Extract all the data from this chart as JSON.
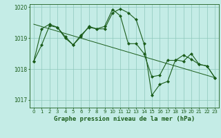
{
  "title": "Graphe pression niveau de la mer (hPa)",
  "bg_color": "#c4ece6",
  "grid_color": "#8ec8bc",
  "line_color": "#1a5c1a",
  "marker_color": "#1a5c1a",
  "xlim": [
    -0.5,
    23.5
  ],
  "ylim": [
    1016.75,
    1020.1
  ],
  "yticks": [
    1017,
    1018,
    1019,
    1020
  ],
  "xticks": [
    0,
    1,
    2,
    3,
    4,
    5,
    6,
    7,
    8,
    9,
    10,
    11,
    12,
    13,
    14,
    15,
    16,
    17,
    18,
    19,
    20,
    21,
    22,
    23
  ],
  "series1": [
    1018.25,
    1018.78,
    1019.4,
    1019.35,
    1019.05,
    1018.78,
    1019.1,
    1019.35,
    1019.3,
    1019.3,
    1019.82,
    1019.95,
    1019.82,
    1019.6,
    1018.82,
    1017.15,
    1017.5,
    1017.6,
    1018.3,
    1018.25,
    1018.5,
    1018.15,
    1018.1,
    1017.72
  ],
  "series2": [
    1018.25,
    1019.3,
    1019.45,
    1019.35,
    1019.0,
    1018.78,
    1019.05,
    1019.38,
    1019.3,
    1019.38,
    1019.93,
    1019.72,
    1018.82,
    1018.82,
    1018.5,
    1017.75,
    1017.8,
    1018.28,
    1018.28,
    1018.45,
    1018.32,
    1018.15,
    1018.1,
    1017.72
  ],
  "trend_x": [
    0,
    23
  ],
  "trend_y": [
    1019.45,
    1017.72
  ],
  "font_color": "#1a5c1a"
}
